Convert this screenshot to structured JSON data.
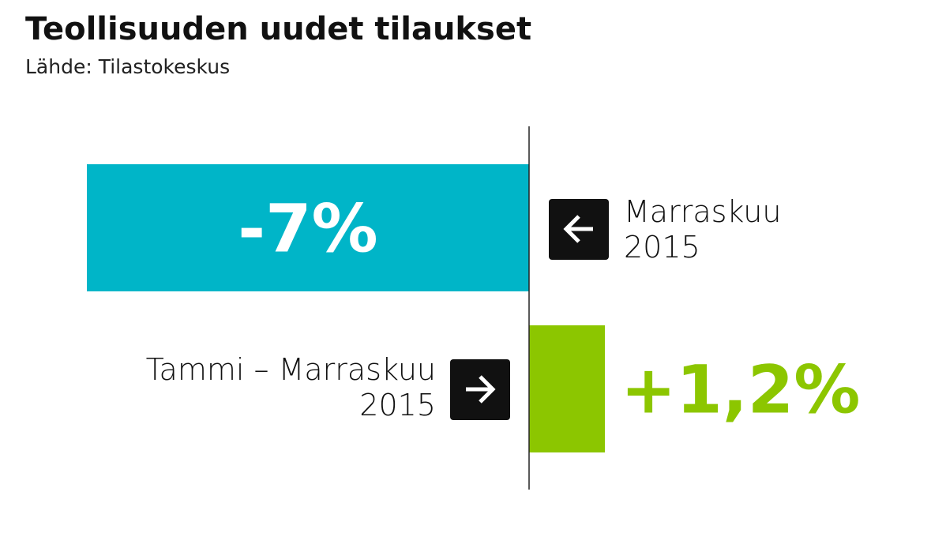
{
  "chart_data": {
    "type": "bar",
    "orientation": "horizontal",
    "title": "Teollisuuden uudet tilaukset",
    "subtitle": "Lähde: Tilastokeskus",
    "categories": [
      "Marraskuu 2015",
      "Tammi – Marraskuu 2015"
    ],
    "values": [
      -7,
      1.2
    ],
    "value_labels": [
      "-7%",
      "+1,2%"
    ],
    "colors": [
      "#00b5c8",
      "#8cc600"
    ],
    "xlim": [
      -7,
      6.5
    ]
  }
}
